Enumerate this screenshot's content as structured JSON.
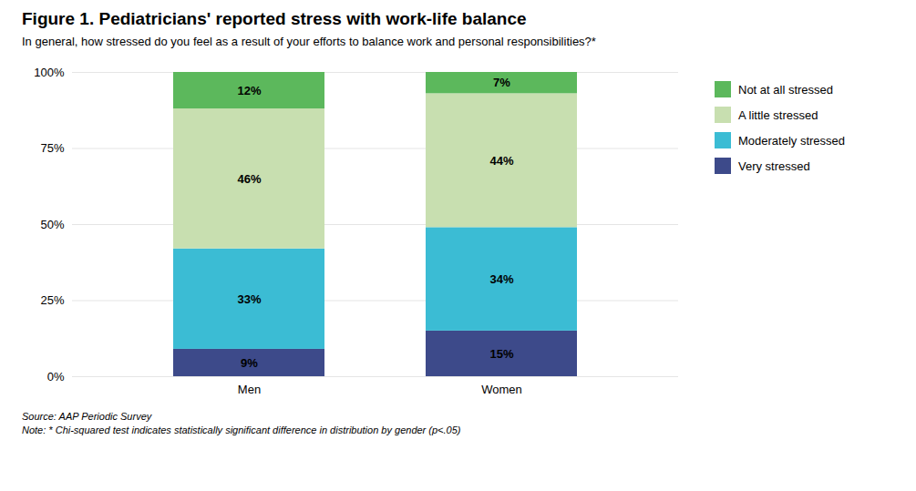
{
  "chart_data": {
    "type": "bar",
    "stacked": true,
    "title": "Figure 1. Pediatricians' reported stress with work-life balance",
    "subtitle": "In general, how stressed do you feel as a result of your efforts to balance work and personal responsibilities?*",
    "categories": [
      "Men",
      "Women"
    ],
    "series": [
      {
        "name": "Very stressed",
        "color": "#3d4a8a",
        "values": [
          9,
          15
        ],
        "value_labels": [
          "9%",
          "15%"
        ]
      },
      {
        "name": "Moderately stressed",
        "color": "#3bbcd4",
        "values": [
          33,
          34
        ],
        "value_labels": [
          "33%",
          "34%"
        ]
      },
      {
        "name": "A little stressed",
        "color": "#c8dfb0",
        "values": [
          46,
          44
        ],
        "value_labels": [
          "46%",
          "44%"
        ]
      },
      {
        "name": "Not at all stressed",
        "color": "#5cb85c",
        "values": [
          12,
          7
        ],
        "value_labels": [
          "12%",
          "7%"
        ]
      }
    ],
    "data_labels": true,
    "ylim": [
      0,
      100
    ],
    "yticks": [
      {
        "value": 0,
        "label": "0%"
      },
      {
        "value": 25,
        "label": "25%"
      },
      {
        "value": 50,
        "label": "50%"
      },
      {
        "value": 75,
        "label": "75%"
      },
      {
        "value": 100,
        "label": "100%"
      }
    ],
    "grid": true,
    "legend": "right",
    "annotations": [
      "Source: AAP Periodic Survey",
      "Note: * Chi-squared test indicates statistically significant difference in distribution by gender (p<.05)"
    ]
  }
}
